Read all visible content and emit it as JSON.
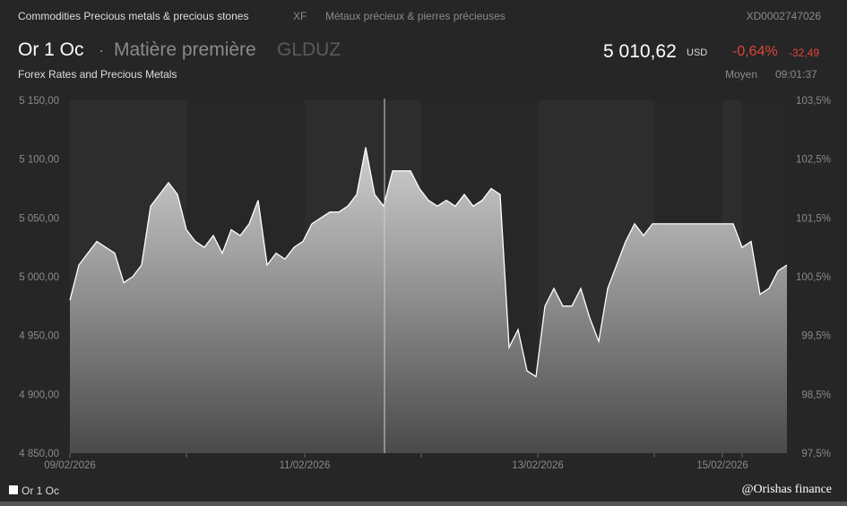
{
  "header": {
    "category": "Commodities Precious metals & precious stones",
    "exchange": "XF",
    "category_fr": "Métaux précieux & pierres précieuses",
    "isin": "XD0002747026",
    "name": "Or 1 Oc",
    "separator": "·",
    "type": "Matière première",
    "ticker": "GLDUZ",
    "subtitle": "Forex Rates and Precious Metals",
    "price": "5 010,62",
    "currency": "USD",
    "change_pct": "-0,64%",
    "change_abs": "-32,49",
    "price_type": "Moyen",
    "time": "09:01:37"
  },
  "colors": {
    "negative": "#e0443a",
    "background": "#262626",
    "line": "#ffffff"
  },
  "legend": {
    "label": "Or 1 Oc"
  },
  "watermark": "@Orishas finance",
  "chart_data": {
    "type": "area",
    "ylim": [
      4850,
      5150
    ],
    "y_ticks": [
      "5 150,00",
      "5 100,00",
      "5 050,00",
      "5 000,00",
      "4 950,00",
      "4 900,00",
      "4 850,00"
    ],
    "y2_ticks": [
      "103,5%",
      "102,5%",
      "101,5%",
      "100,5%",
      "99,5%",
      "98,5%",
      "97,5%"
    ],
    "x_ticks": [
      "09/02/2026",
      "11/02/2026",
      "13/02/2026",
      "15/02/2026"
    ],
    "grid": false,
    "legend": "bottom-left",
    "values": [
      4980,
      5010,
      5020,
      5030,
      5025,
      5020,
      4995,
      5000,
      5010,
      5060,
      5070,
      5080,
      5070,
      5040,
      5030,
      5025,
      5035,
      5020,
      5040,
      5035,
      5045,
      5065,
      5010,
      5020,
      5015,
      5025,
      5030,
      5045,
      5050,
      5055,
      5055,
      5060,
      5070,
      5110,
      5070,
      5060,
      5090,
      5090,
      5090,
      5075,
      5065,
      5060,
      5065,
      5060,
      5070,
      5060,
      5065,
      5075,
      5070,
      4940,
      4955,
      4920,
      4915,
      4975,
      4990,
      4975,
      4975,
      4990,
      4965,
      4945,
      4990,
      5010,
      5030,
      5045,
      5035,
      5045,
      5045,
      5045,
      5045,
      5045,
      5045,
      5045,
      5045,
      5045,
      5045,
      5025,
      5030,
      4985,
      4990,
      5005,
      5010
    ]
  }
}
